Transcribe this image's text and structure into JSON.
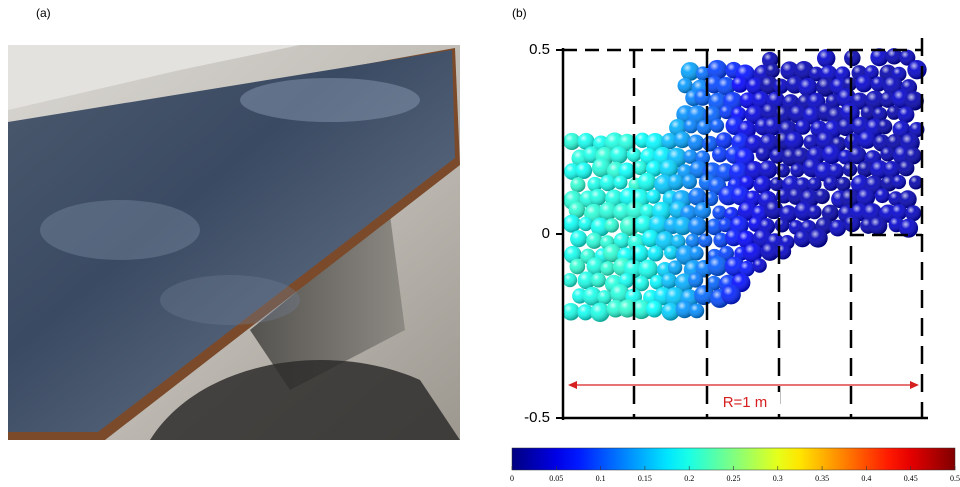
{
  "panels": {
    "a": {
      "label": "(a)"
    },
    "b": {
      "label": "(b)",
      "yticks": [
        0.5,
        0,
        -0.5
      ],
      "annotation": "R=1 m",
      "colorbar": {
        "ticks": [
          0,
          0.05,
          0.1,
          0.15,
          0.2,
          0.25,
          0.3,
          0.35,
          0.4,
          0.45,
          0.5
        ]
      }
    }
  }
}
